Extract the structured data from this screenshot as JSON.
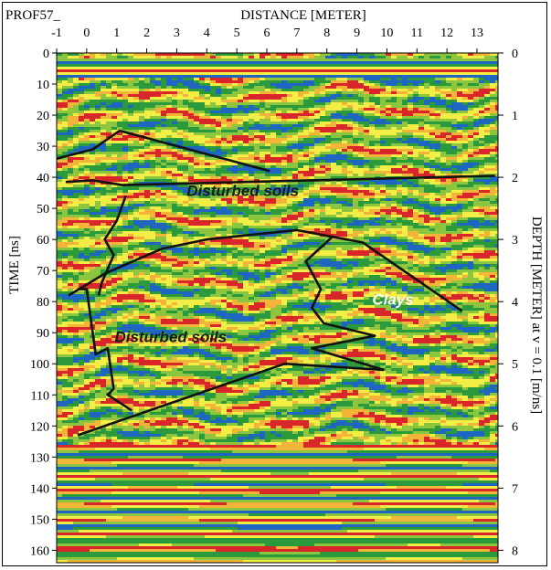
{
  "chart_data": {
    "type": "heatmap",
    "profile_label": "PROF57_",
    "title": "DISTANCE [METER]",
    "x_ticks": [
      "-1",
      "0",
      "1",
      "2",
      "3",
      "4",
      "5",
      "6",
      "7",
      "8",
      "9",
      "10",
      "11",
      "12",
      "13"
    ],
    "x_range": [
      -1,
      13.7
    ],
    "ylabel_left": "TIME [ns]",
    "y_ticks_left": [
      "0",
      "10",
      "20",
      "30",
      "40",
      "50",
      "60",
      "70",
      "80",
      "90",
      "100",
      "110",
      "120",
      "130",
      "140",
      "150",
      "160"
    ],
    "y_range_left": [
      0,
      164
    ],
    "ylabel_right": "DEPTH [METER] at v = 0.1 [m/ns]",
    "y_ticks_right": [
      "0",
      "1",
      "2",
      "3",
      "4",
      "5",
      "6",
      "7",
      "8"
    ],
    "y_range_right": [
      0,
      8.2
    ],
    "annotations": [
      {
        "text": "Disturbed soils",
        "x": 5.2,
        "y": 46,
        "color": "#1a1a1a"
      },
      {
        "text": "Disturbed soils",
        "x": 2.8,
        "y": 93,
        "color": "#1a1a1a"
      },
      {
        "text": "Clays",
        "x": 10.2,
        "y": 81,
        "color": "#ffffff"
      }
    ],
    "interpretation_lines": [
      {
        "name": "upper-wedge",
        "points": [
          [
            -1.0,
            34
          ],
          [
            0.2,
            31
          ],
          [
            1.1,
            25
          ],
          [
            6.1,
            38
          ]
        ]
      },
      {
        "name": "reflector",
        "points": [
          [
            -0.7,
            41.5
          ],
          [
            0.2,
            41
          ],
          [
            1.2,
            42.5
          ],
          [
            13.6,
            39.5
          ]
        ]
      },
      {
        "name": "lower-envelope-top",
        "points": [
          [
            -0.6,
            78
          ],
          [
            0.6,
            71
          ],
          [
            2.5,
            63
          ],
          [
            4.0,
            60
          ],
          [
            7.0,
            57
          ],
          [
            9.2,
            61
          ],
          [
            12.5,
            83
          ]
        ]
      },
      {
        "name": "lower-envelope-bottom",
        "points": [
          [
            -0.3,
            123
          ],
          [
            6.6,
            100
          ],
          [
            9.9,
            102
          ]
        ]
      },
      {
        "name": "left-zigzag",
        "points": [
          [
            -0.3,
            76
          ],
          [
            0.0,
            76
          ],
          [
            0.3,
            97
          ],
          [
            0.7,
            95
          ],
          [
            0.9,
            108
          ],
          [
            0.7,
            110
          ],
          [
            1.5,
            115
          ]
        ]
      },
      {
        "name": "upper-zigzag",
        "points": [
          [
            1.3,
            46
          ],
          [
            1.0,
            54
          ],
          [
            0.6,
            60
          ],
          [
            0.9,
            65
          ],
          [
            0.5,
            74
          ],
          [
            0.4,
            78
          ]
        ]
      },
      {
        "name": "right-zigzag",
        "points": [
          [
            8.2,
            59
          ],
          [
            7.3,
            67
          ],
          [
            7.8,
            76
          ],
          [
            7.5,
            82
          ],
          [
            7.9,
            87
          ],
          [
            9.6,
            91
          ],
          [
            7.5,
            95
          ],
          [
            9.9,
            102
          ]
        ]
      }
    ],
    "colormap": [
      "#1f66c2",
      "#2b9a3c",
      "#8cc63f",
      "#f2ee46",
      "#f4b43a",
      "#d8262a"
    ],
    "colors": {
      "line": "#111111",
      "background": "#ffffff"
    }
  }
}
